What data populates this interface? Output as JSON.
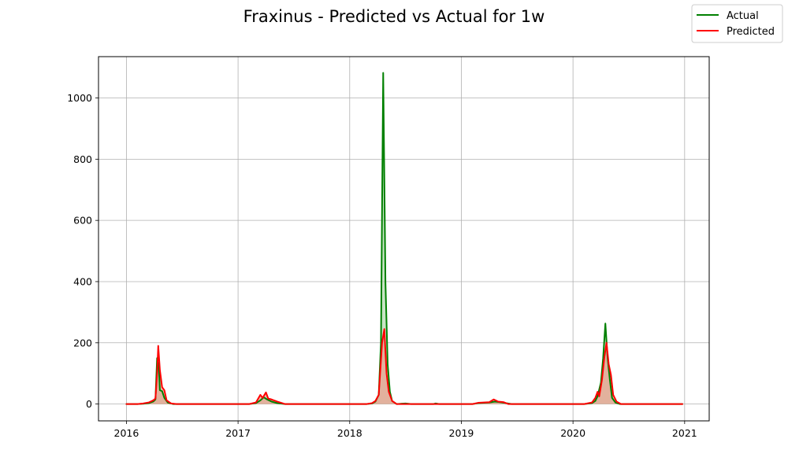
{
  "chart_data": {
    "type": "line",
    "title": "Fraxinus - Predicted vs Actual for 1w",
    "xlabel": "",
    "ylabel": "",
    "xlim": [
      2015.75,
      2021.22
    ],
    "ylim": [
      -55,
      1135
    ],
    "x_ticks": [
      2016,
      2017,
      2018,
      2019,
      2020,
      2021
    ],
    "x_tick_labels": [
      "2016",
      "2017",
      "2018",
      "2019",
      "2020",
      "2021"
    ],
    "y_ticks": [
      0,
      200,
      400,
      600,
      800,
      1000
    ],
    "y_tick_labels": [
      "0",
      "200",
      "400",
      "600",
      "800",
      "1000"
    ],
    "grid": true,
    "legend_position": "top-right",
    "series": [
      {
        "name": "Actual",
        "color": "#008000",
        "fill": "#b7dbb3",
        "points": [
          [
            2016.0,
            0
          ],
          [
            2016.1,
            0
          ],
          [
            2016.15,
            1
          ],
          [
            2016.2,
            3
          ],
          [
            2016.24,
            8
          ],
          [
            2016.26,
            15
          ],
          [
            2016.275,
            150
          ],
          [
            2016.29,
            120
          ],
          [
            2016.3,
            45
          ],
          [
            2016.32,
            42
          ],
          [
            2016.34,
            20
          ],
          [
            2016.37,
            5
          ],
          [
            2016.42,
            0
          ],
          [
            2016.6,
            0
          ],
          [
            2017.0,
            0
          ],
          [
            2017.1,
            0
          ],
          [
            2017.16,
            3
          ],
          [
            2017.2,
            12
          ],
          [
            2017.23,
            22
          ],
          [
            2017.26,
            15
          ],
          [
            2017.3,
            8
          ],
          [
            2017.35,
            3
          ],
          [
            2017.42,
            0
          ],
          [
            2017.7,
            0
          ],
          [
            2018.0,
            0
          ],
          [
            2018.15,
            0
          ],
          [
            2018.2,
            2
          ],
          [
            2018.23,
            8
          ],
          [
            2018.26,
            30
          ],
          [
            2018.28,
            200
          ],
          [
            2018.3,
            1082
          ],
          [
            2018.32,
            400
          ],
          [
            2018.34,
            130
          ],
          [
            2018.36,
            40
          ],
          [
            2018.38,
            10
          ],
          [
            2018.42,
            0
          ],
          [
            2018.5,
            2
          ],
          [
            2018.55,
            0
          ],
          [
            2018.75,
            0
          ],
          [
            2018.77,
            2
          ],
          [
            2018.8,
            0
          ],
          [
            2019.0,
            0
          ],
          [
            2019.1,
            0
          ],
          [
            2019.15,
            3
          ],
          [
            2019.25,
            5
          ],
          [
            2019.3,
            8
          ],
          [
            2019.35,
            6
          ],
          [
            2019.4,
            3
          ],
          [
            2019.45,
            0
          ],
          [
            2019.8,
            0
          ],
          [
            2020.0,
            0
          ],
          [
            2020.1,
            0
          ],
          [
            2020.17,
            3
          ],
          [
            2020.2,
            10
          ],
          [
            2020.22,
            25
          ],
          [
            2020.25,
            70
          ],
          [
            2020.27,
            150
          ],
          [
            2020.29,
            263
          ],
          [
            2020.31,
            150
          ],
          [
            2020.33,
            80
          ],
          [
            2020.35,
            20
          ],
          [
            2020.38,
            5
          ],
          [
            2020.42,
            0
          ],
          [
            2020.6,
            0
          ],
          [
            2020.98,
            0
          ]
        ]
      },
      {
        "name": "Predicted",
        "color": "#ff0000",
        "fill": "#e9a08f",
        "points": [
          [
            2016.0,
            0
          ],
          [
            2016.1,
            0
          ],
          [
            2016.15,
            2
          ],
          [
            2016.2,
            5
          ],
          [
            2016.24,
            12
          ],
          [
            2016.26,
            18
          ],
          [
            2016.275,
            100
          ],
          [
            2016.285,
            190
          ],
          [
            2016.3,
            110
          ],
          [
            2016.32,
            55
          ],
          [
            2016.34,
            45
          ],
          [
            2016.36,
            12
          ],
          [
            2016.4,
            2
          ],
          [
            2016.45,
            0
          ],
          [
            2016.6,
            0
          ],
          [
            2017.0,
            0
          ],
          [
            2017.1,
            0
          ],
          [
            2017.16,
            5
          ],
          [
            2017.2,
            30
          ],
          [
            2017.22,
            20
          ],
          [
            2017.25,
            38
          ],
          [
            2017.27,
            18
          ],
          [
            2017.3,
            15
          ],
          [
            2017.35,
            8
          ],
          [
            2017.42,
            0
          ],
          [
            2017.7,
            0
          ],
          [
            2018.0,
            0
          ],
          [
            2018.15,
            0
          ],
          [
            2018.2,
            3
          ],
          [
            2018.23,
            10
          ],
          [
            2018.26,
            30
          ],
          [
            2018.29,
            200
          ],
          [
            2018.31,
            245
          ],
          [
            2018.33,
            100
          ],
          [
            2018.35,
            40
          ],
          [
            2018.38,
            10
          ],
          [
            2018.42,
            0
          ],
          [
            2018.8,
            0
          ],
          [
            2019.0,
            0
          ],
          [
            2019.1,
            0
          ],
          [
            2019.15,
            4
          ],
          [
            2019.25,
            6
          ],
          [
            2019.29,
            15
          ],
          [
            2019.33,
            8
          ],
          [
            2019.38,
            6
          ],
          [
            2019.42,
            0
          ],
          [
            2019.8,
            0
          ],
          [
            2020.0,
            0
          ],
          [
            2020.1,
            0
          ],
          [
            2020.17,
            5
          ],
          [
            2020.2,
            20
          ],
          [
            2020.22,
            40
          ],
          [
            2020.235,
            25
          ],
          [
            2020.26,
            80
          ],
          [
            2020.28,
            150
          ],
          [
            2020.3,
            200
          ],
          [
            2020.32,
            130
          ],
          [
            2020.34,
            95
          ],
          [
            2020.36,
            30
          ],
          [
            2020.39,
            8
          ],
          [
            2020.43,
            0
          ],
          [
            2020.6,
            0
          ],
          [
            2020.98,
            0
          ]
        ]
      }
    ]
  }
}
